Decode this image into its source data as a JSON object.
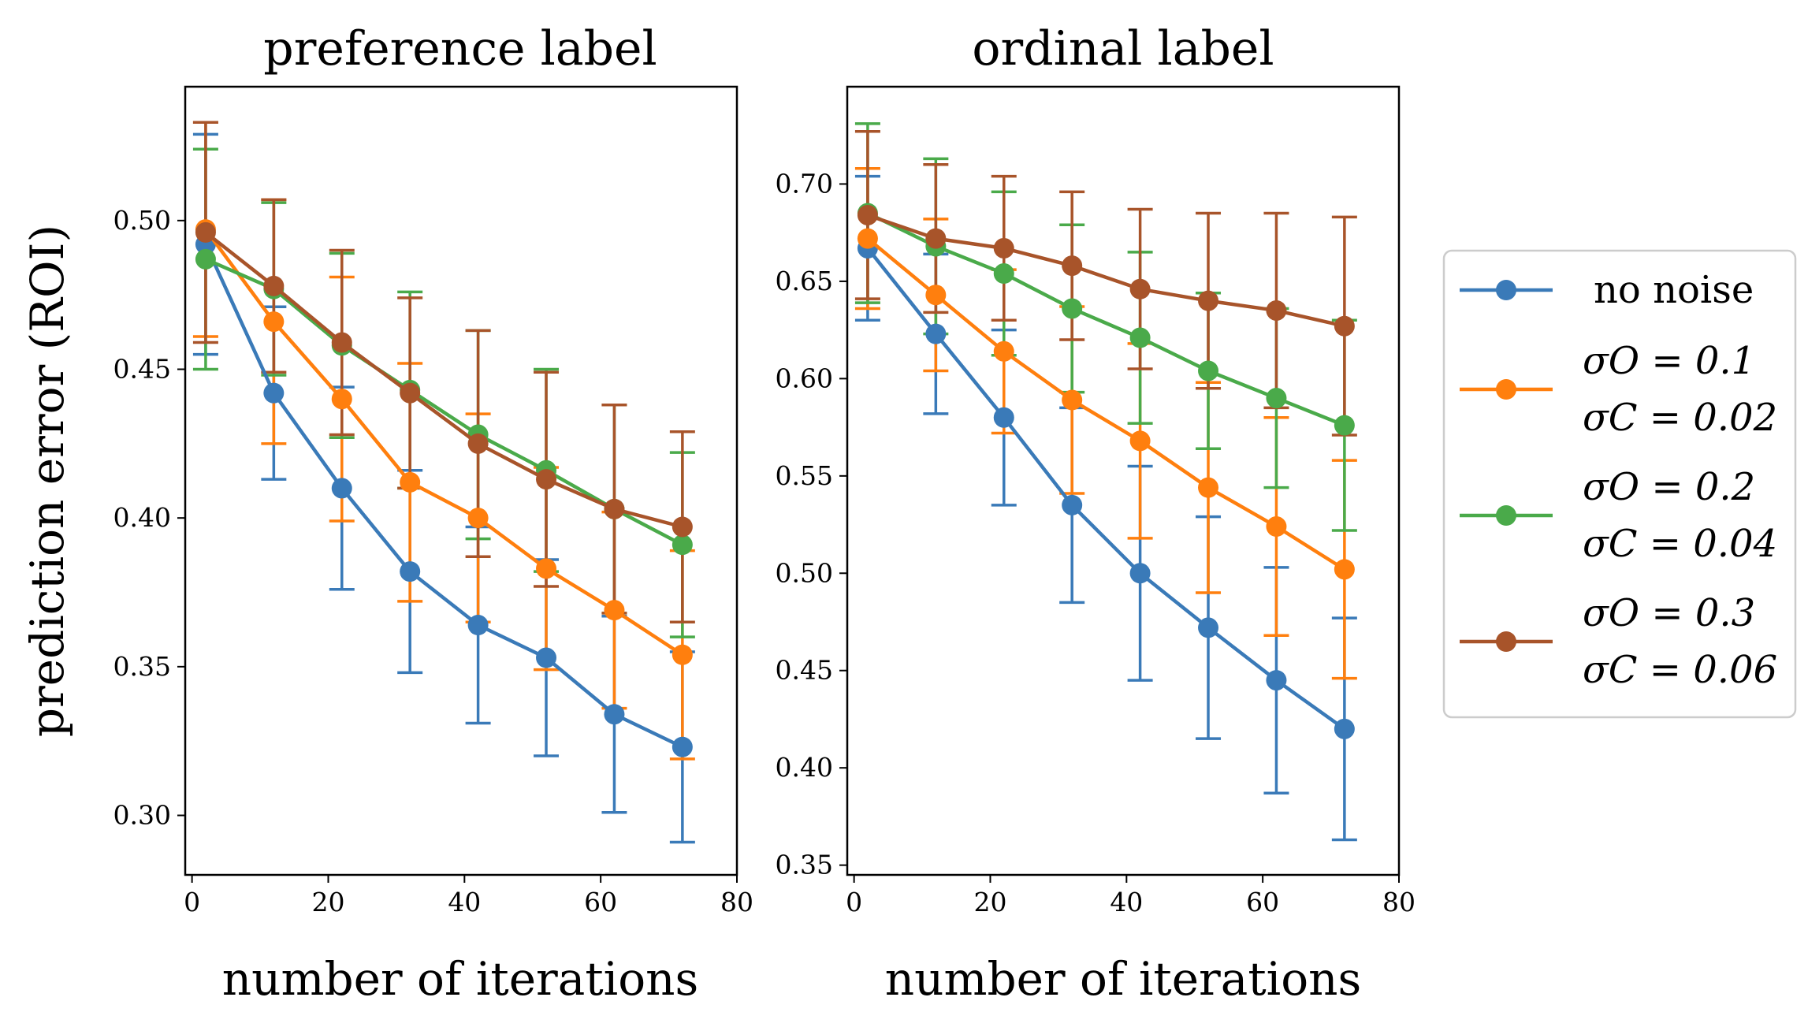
{
  "chart_data": [
    {
      "type": "line",
      "title": "preference label",
      "xlabel": "number of iterations",
      "ylabel": "prediction error (ROI)",
      "xlim": [
        -1,
        80
      ],
      "ylim": [
        0.28,
        0.545
      ],
      "xticks": [
        "0",
        "20",
        "40",
        "60",
        "80"
      ],
      "yticks": [
        "0.30",
        "0.35",
        "0.40",
        "0.45",
        "0.50"
      ],
      "x": [
        2,
        12,
        22,
        32,
        42,
        52,
        62,
        72
      ],
      "series": [
        {
          "name": "no noise",
          "color": "#3a7ab8",
          "values": [
            0.492,
            0.442,
            0.41,
            0.382,
            0.364,
            0.353,
            0.334,
            0.323
          ],
          "errors": [
            0.037,
            0.029,
            0.034,
            0.034,
            0.033,
            0.033,
            0.033,
            0.032
          ]
        },
        {
          "name": "σO = 0.1 σC = 0.02",
          "color": "#ff7f0e",
          "values": [
            0.497,
            0.466,
            0.44,
            0.412,
            0.4,
            0.383,
            0.369,
            0.354
          ],
          "errors": [
            0.036,
            0.041,
            0.041,
            0.04,
            0.035,
            0.034,
            0.033,
            0.035
          ]
        },
        {
          "name": "σO = 0.2 σC = 0.04",
          "color": "#4aaa4a",
          "values": [
            0.487,
            0.477,
            0.458,
            0.443,
            0.428,
            0.416,
            0.403,
            0.391
          ],
          "errors": [
            0.037,
            0.029,
            0.031,
            0.033,
            0.035,
            0.034,
            0.035,
            0.031
          ]
        },
        {
          "name": "σO = 0.3 σC = 0.06",
          "color": "#a8542a",
          "values": [
            0.496,
            0.478,
            0.459,
            0.442,
            0.425,
            0.413,
            0.403,
            0.397
          ],
          "errors": [
            0.037,
            0.029,
            0.031,
            0.032,
            0.038,
            0.036,
            0.035,
            0.032
          ]
        }
      ]
    },
    {
      "type": "line",
      "title": "ordinal label",
      "xlabel": "number of iterations",
      "ylabel": "",
      "xlim": [
        -1,
        80
      ],
      "ylim": [
        0.345,
        0.75
      ],
      "xticks": [
        "0",
        "20",
        "40",
        "60",
        "80"
      ],
      "yticks": [
        "0.35",
        "0.40",
        "0.45",
        "0.50",
        "0.55",
        "0.60",
        "0.65",
        "0.70"
      ],
      "x": [
        2,
        12,
        22,
        32,
        42,
        52,
        62,
        72
      ],
      "series": [
        {
          "name": "no noise",
          "color": "#3a7ab8",
          "values": [
            0.667,
            0.623,
            0.58,
            0.535,
            0.5,
            0.472,
            0.445,
            0.42
          ],
          "errors": [
            0.037,
            0.041,
            0.045,
            0.05,
            0.055,
            0.057,
            0.058,
            0.057
          ]
        },
        {
          "name": "σO = 0.1 σC = 0.02",
          "color": "#ff7f0e",
          "values": [
            0.672,
            0.643,
            0.614,
            0.589,
            0.568,
            0.544,
            0.524,
            0.502
          ],
          "errors": [
            0.036,
            0.039,
            0.042,
            0.048,
            0.05,
            0.054,
            0.056,
            0.056
          ]
        },
        {
          "name": "σO = 0.2 σC = 0.04",
          "color": "#4aaa4a",
          "values": [
            0.685,
            0.668,
            0.654,
            0.636,
            0.621,
            0.604,
            0.59,
            0.576
          ],
          "errors": [
            0.046,
            0.045,
            0.042,
            0.043,
            0.044,
            0.04,
            0.046,
            0.054
          ]
        },
        {
          "name": "σO = 0.3 σC = 0.06",
          "color": "#a8542a",
          "values": [
            0.684,
            0.672,
            0.667,
            0.658,
            0.646,
            0.64,
            0.635,
            0.627
          ],
          "errors": [
            0.043,
            0.038,
            0.037,
            0.038,
            0.041,
            0.045,
            0.05,
            0.056
          ]
        }
      ]
    }
  ],
  "legend": [
    {
      "line1": "no noise",
      "color": "#3a7ab8"
    },
    {
      "line1": "σO = 0.1",
      "line2": "σC = 0.02",
      "color": "#ff7f0e"
    },
    {
      "line1": "σO = 0.2",
      "line2": "σC = 0.04",
      "color": "#4aaa4a"
    },
    {
      "line1": "σO = 0.3",
      "line2": "σC = 0.06",
      "color": "#a8542a"
    }
  ]
}
